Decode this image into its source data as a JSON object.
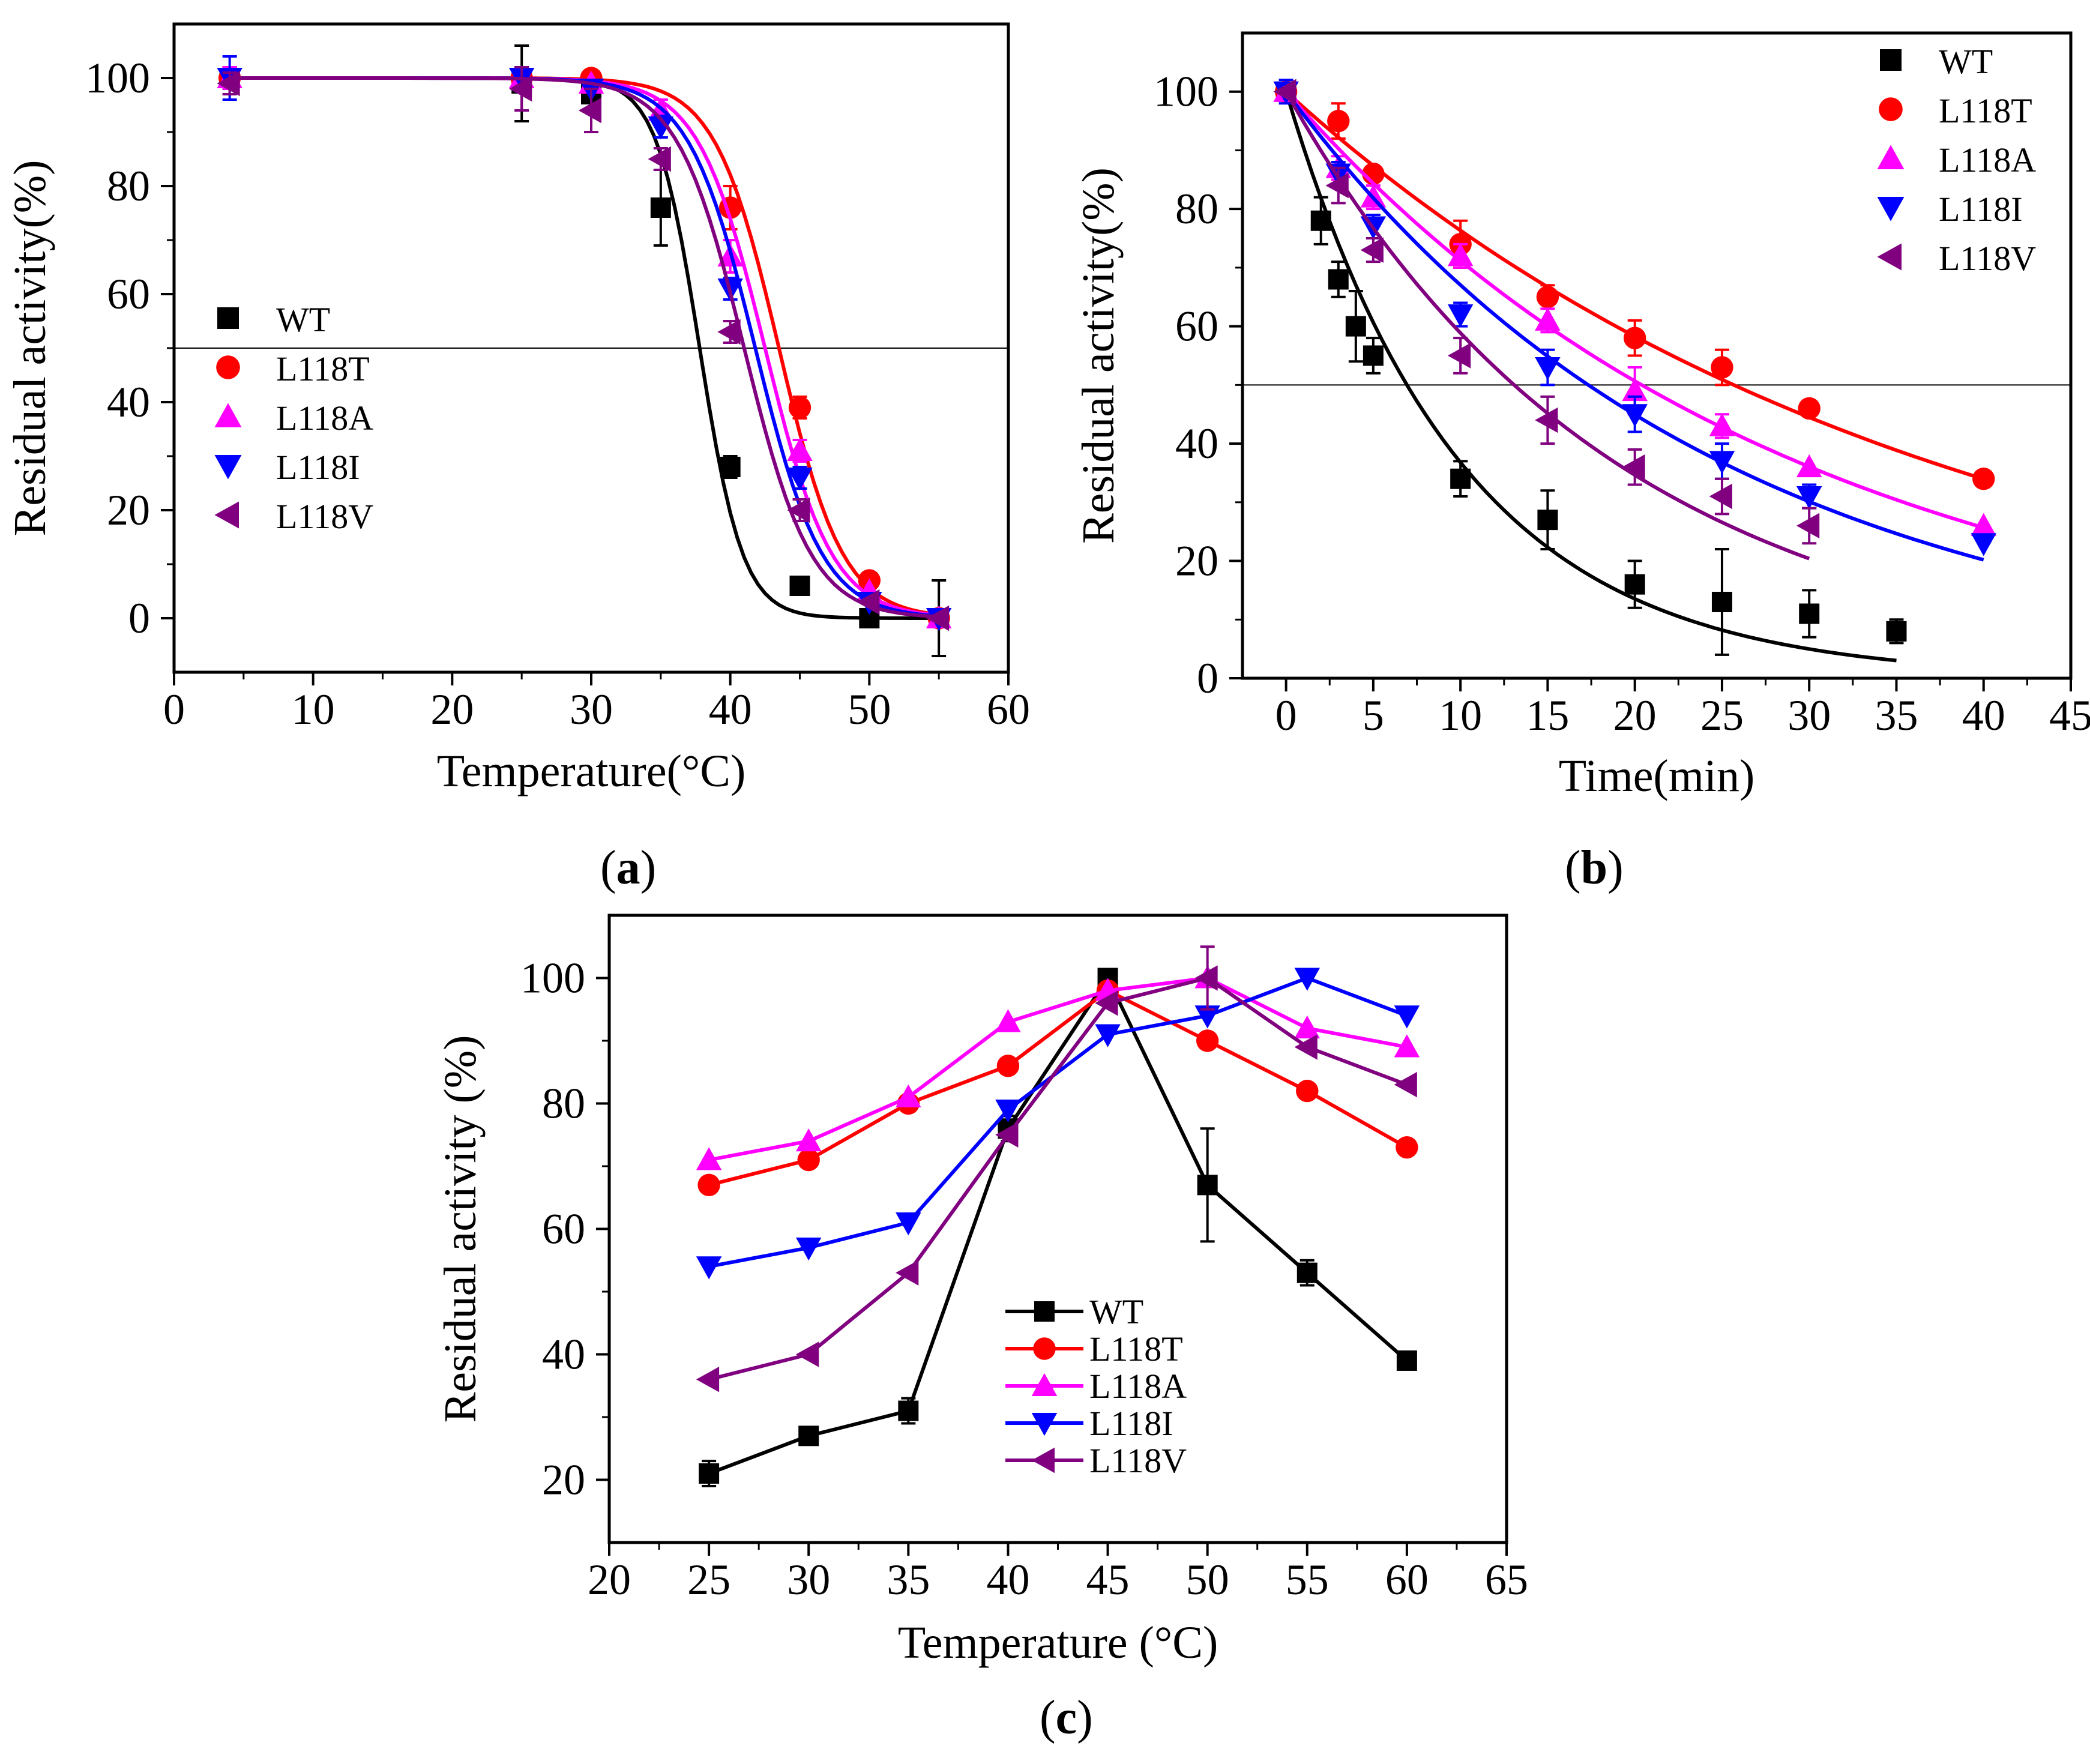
{
  "chart_data": [
    {
      "type": "scatter",
      "panel_label": "a",
      "xlabel": "Temperature(°C)",
      "ylabel": "Residual activity(%)",
      "xlim": [
        0,
        60
      ],
      "ylim": [
        -10,
        110
      ],
      "xticks": [
        0,
        10,
        20,
        30,
        40,
        50,
        60
      ],
      "yticks": [
        0,
        20,
        40,
        60,
        80,
        100
      ],
      "reference_line": 50,
      "fit": "sigmoid",
      "legend_position": "center-left",
      "series": [
        {
          "name": "WT",
          "color": "#000000",
          "marker": "square",
          "x": [
            4,
            25,
            30,
            35,
            40,
            45,
            50,
            55
          ],
          "y": [
            100,
            99,
            97,
            76,
            28,
            6,
            0,
            0
          ],
          "err": [
            2,
            7,
            3,
            7,
            2,
            1,
            1,
            7
          ],
          "fit_tm": 37.8,
          "fit_k": 1.55
        },
        {
          "name": "L118T",
          "color": "#ff0000",
          "marker": "circle",
          "x": [
            4,
            25,
            30,
            40,
            45,
            50,
            55
          ],
          "y": [
            100,
            100,
            100,
            76,
            39,
            7,
            0
          ],
          "err": [
            2,
            2,
            1,
            4,
            2,
            1,
            1
          ],
          "fit_tm": 43.5,
          "fit_k": 2.3
        },
        {
          "name": "L118A",
          "color": "#ff00ff",
          "marker": "triangle-up",
          "x": [
            4,
            25,
            30,
            35,
            40,
            45,
            50,
            55
          ],
          "y": [
            100,
            100,
            99,
            94,
            67,
            31,
            5,
            0
          ],
          "err": [
            2,
            2,
            1,
            2,
            3,
            2,
            1,
            1
          ],
          "fit_tm": 42.5,
          "fit_k": 2.4
        },
        {
          "name": "L118I",
          "color": "#0000ff",
          "marker": "triangle-down",
          "x": [
            4,
            25,
            30,
            35,
            40,
            45,
            50,
            55
          ],
          "y": [
            100,
            100,
            98,
            91,
            61,
            26,
            3,
            0
          ],
          "err": [
            4,
            2,
            1,
            2,
            2,
            2,
            1,
            1
          ],
          "fit_tm": 41.8,
          "fit_k": 2.4
        },
        {
          "name": "L118V",
          "color": "#800080",
          "marker": "triangle-left",
          "x": [
            4,
            25,
            30,
            35,
            40,
            45,
            50,
            55
          ],
          "y": [
            99,
            98,
            94,
            85,
            53,
            20,
            3,
            0
          ],
          "err": [
            2,
            4,
            4,
            2,
            2,
            2,
            1,
            1
          ],
          "fit_tm": 41.0,
          "fit_k": 2.4
        }
      ]
    },
    {
      "type": "scatter",
      "panel_label": "b",
      "xlabel": "Time(min)",
      "ylabel": "Residual activity(%)",
      "xlim": [
        -2.5,
        45
      ],
      "ylim": [
        0,
        110
      ],
      "xticks": [
        0,
        5,
        10,
        15,
        20,
        25,
        30,
        35,
        40,
        45
      ],
      "yticks": [
        0,
        20,
        40,
        60,
        80,
        100
      ],
      "reference_line": 50,
      "fit": "exponential-decay",
      "legend_position": "top-right",
      "series": [
        {
          "name": "WT",
          "color": "#000000",
          "marker": "square",
          "x": [
            0,
            2,
            3,
            4,
            5,
            10,
            15,
            20,
            25,
            30,
            35
          ],
          "y": [
            100,
            78,
            68,
            60,
            55,
            34,
            27,
            16,
            13,
            11,
            8
          ],
          "err": [
            1,
            4,
            3,
            6,
            3,
            3,
            5,
            4,
            9,
            4,
            2
          ],
          "fit_k": 0.1,
          "fit_end": 35
        },
        {
          "name": "L118T",
          "color": "#ff0000",
          "marker": "circle",
          "x": [
            0,
            3,
            5,
            10,
            15,
            20,
            25,
            30,
            40
          ],
          "y": [
            100,
            95,
            86,
            74,
            65,
            58,
            53,
            46,
            34
          ],
          "err": [
            1,
            3,
            1,
            4,
            2,
            3,
            3,
            1,
            1
          ],
          "fit_k": 0.027,
          "fit_end": 40
        },
        {
          "name": "L118A",
          "color": "#ff00ff",
          "marker": "triangle-up",
          "x": [
            0,
            3,
            5,
            10,
            15,
            20,
            25,
            30,
            40
          ],
          "y": [
            100,
            87,
            82,
            72,
            61,
            49,
            43,
            36,
            26
          ],
          "err": [
            1,
            2,
            2,
            2,
            2,
            4,
            2,
            1,
            1
          ],
          "fit_k": 0.034,
          "fit_end": 40
        },
        {
          "name": "L118I",
          "color": "#0000ff",
          "marker": "triangle-down",
          "x": [
            0,
            3,
            5,
            10,
            15,
            20,
            25,
            30,
            40
          ],
          "y": [
            100,
            86,
            77,
            62,
            53,
            45,
            37,
            31,
            23
          ],
          "err": [
            2,
            2,
            2,
            2,
            3,
            3,
            3,
            2,
            1
          ],
          "fit_k": 0.04,
          "fit_end": 40
        },
        {
          "name": "L118V",
          "color": "#800080",
          "marker": "triangle-left",
          "x": [
            0,
            3,
            5,
            10,
            15,
            20,
            25,
            30
          ],
          "y": [
            100,
            84,
            73,
            55,
            44,
            36,
            31,
            26
          ],
          "err": [
            1,
            3,
            2,
            3,
            4,
            3,
            3,
            3
          ],
          "fit_k": 0.053,
          "fit_end": 30
        }
      ]
    },
    {
      "type": "line",
      "panel_label": "c",
      "xlabel": "Temperature (°C)",
      "ylabel": "Residual activity (%)",
      "xlim": [
        20,
        65
      ],
      "ylim": [
        10,
        110
      ],
      "xticks": [
        20,
        25,
        30,
        35,
        40,
        45,
        50,
        55,
        60,
        65
      ],
      "yticks": [
        20,
        40,
        60,
        80,
        100
      ],
      "legend_position": "bottom-center",
      "series": [
        {
          "name": "WT",
          "color": "#000000",
          "marker": "square",
          "x": [
            25,
            30,
            35,
            40,
            45,
            50,
            55,
            60
          ],
          "y": [
            21,
            27,
            31,
            76,
            100,
            67,
            53,
            39
          ],
          "err": [
            2,
            1,
            2,
            2,
            1,
            9,
            2,
            1
          ]
        },
        {
          "name": "L118T",
          "color": "#ff0000",
          "marker": "circle",
          "x": [
            25,
            30,
            35,
            40,
            45,
            50,
            55,
            60
          ],
          "y": [
            67,
            71,
            80,
            86,
            98,
            90,
            82,
            73
          ],
          "err": [
            1,
            1,
            1,
            1,
            1,
            1,
            1,
            1
          ]
        },
        {
          "name": "L118A",
          "color": "#ff00ff",
          "marker": "triangle-up",
          "x": [
            25,
            30,
            35,
            40,
            45,
            50,
            55,
            60
          ],
          "y": [
            71,
            74,
            81,
            93,
            98,
            100,
            92,
            89
          ],
          "err": [
            1,
            1,
            1,
            1,
            1,
            1,
            1,
            1
          ]
        },
        {
          "name": "L118I",
          "color": "#0000ff",
          "marker": "triangle-down",
          "x": [
            25,
            30,
            35,
            40,
            45,
            50,
            55,
            60
          ],
          "y": [
            54,
            57,
            61,
            79,
            91,
            94,
            100,
            94
          ],
          "err": [
            1,
            1,
            1,
            1,
            1,
            1,
            1,
            1
          ]
        },
        {
          "name": "L118V",
          "color": "#800080",
          "marker": "triangle-left",
          "x": [
            25,
            30,
            35,
            40,
            45,
            50,
            55,
            60
          ],
          "y": [
            36,
            40,
            53,
            75,
            96,
            100,
            89,
            83
          ],
          "err": [
            1,
            1,
            1,
            1,
            1,
            5,
            1,
            1
          ]
        }
      ]
    }
  ]
}
